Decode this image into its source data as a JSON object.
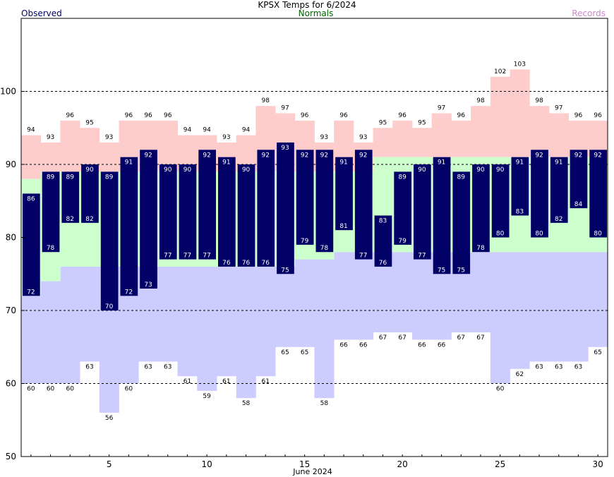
{
  "chart_data": {
    "type": "bar",
    "title": "KPSX Temps for 6/2024",
    "xlabel": "June 2024",
    "ylabel": "",
    "ylim": [
      50,
      110
    ],
    "xlim": [
      0.5,
      30.5
    ],
    "yticks": [
      50,
      60,
      70,
      80,
      90,
      100
    ],
    "xticks": [
      5,
      10,
      15,
      20,
      25,
      30
    ],
    "grid": "horizontal dashed at 60, 70, 90, 100",
    "legend": [
      "Observed",
      "Normals",
      "Records"
    ],
    "days": [
      1,
      2,
      3,
      4,
      5,
      6,
      7,
      8,
      9,
      10,
      11,
      12,
      13,
      14,
      15,
      16,
      17,
      18,
      19,
      20,
      21,
      22,
      23,
      24,
      25,
      26,
      27,
      28,
      29,
      30
    ],
    "series": [
      {
        "name": "Observed",
        "role": "observed_high",
        "values": [
          86,
          89,
          89,
          90,
          89,
          91,
          92,
          90,
          90,
          92,
          91,
          90,
          92,
          93,
          92,
          92,
          91,
          92,
          83,
          89,
          90,
          91,
          89,
          90,
          90,
          91,
          92,
          91,
          92,
          92
        ]
      },
      {
        "name": "Observed",
        "role": "observed_low",
        "values": [
          72,
          78,
          82,
          82,
          70,
          72,
          73,
          77,
          77,
          77,
          76,
          76,
          76,
          75,
          79,
          78,
          81,
          77,
          76,
          79,
          77,
          75,
          75,
          78,
          80,
          83,
          80,
          82,
          84,
          80
        ]
      },
      {
        "name": "Normals",
        "role": "normal_high",
        "values": [
          88,
          89,
          89,
          89,
          89,
          89,
          89,
          89,
          89,
          89,
          89,
          89,
          89,
          89,
          89,
          89,
          89,
          89,
          91,
          91,
          91,
          91,
          91,
          91,
          91,
          91,
          91,
          91,
          91,
          91
        ]
      },
      {
        "name": "Normals",
        "role": "normal_low",
        "values": [
          72,
          74,
          76,
          76,
          76,
          76,
          76,
          76,
          76,
          76,
          76,
          76,
          76,
          76,
          77,
          77,
          78,
          78,
          78,
          78,
          78,
          78,
          78,
          78,
          78,
          78,
          78,
          78,
          78,
          78
        ]
      },
      {
        "name": "Records",
        "role": "record_high",
        "values": [
          94,
          93,
          96,
          95,
          93,
          96,
          96,
          96,
          94,
          94,
          93,
          94,
          98,
          97,
          96,
          93,
          96,
          93,
          95,
          96,
          95,
          97,
          96,
          98,
          102,
          103,
          98,
          97,
          96,
          96
        ]
      },
      {
        "name": "Records",
        "role": "record_low",
        "values": [
          60,
          60,
          60,
          63,
          56,
          60,
          63,
          63,
          61,
          59,
          61,
          58,
          61,
          65,
          65,
          58,
          66,
          66,
          67,
          67,
          66,
          66,
          67,
          67,
          60,
          62,
          63,
          63,
          63,
          65
        ]
      }
    ]
  },
  "colors": {
    "observed": "#000066",
    "observed_label": "#ffffff",
    "normal": "#ccffcc",
    "record_high": "#ffcccc",
    "record_low": "#ccccff",
    "legend_observed": "#000066",
    "legend_normals": "#006600",
    "legend_records": "#cc88cc",
    "grid": "#000000"
  }
}
